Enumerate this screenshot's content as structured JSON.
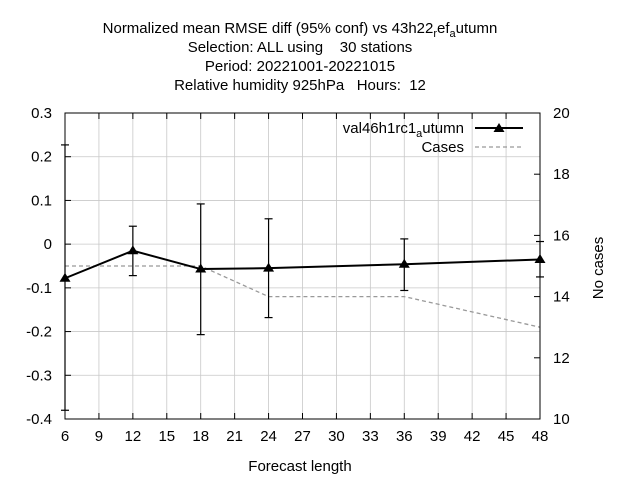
{
  "chart_data": {
    "type": "line",
    "title_lines": [
      "Normalized mean RMSE diff (95% conf) vs 43h22",
      "Selection: ALL using    30 stations",
      "Period: 20221001-20221015",
      "Relative humidity 925hPa   Hours:  12"
    ],
    "title_ref_suffix": {
      "a": "r",
      "b": "ef",
      "c": "a",
      "d": "utumn"
    },
    "xlabel": "Forecast length",
    "ylabel": "",
    "y2label": "No cases",
    "xlim": [
      6,
      48
    ],
    "ylim": [
      -0.4,
      0.3
    ],
    "y2lim": [
      10,
      20
    ],
    "x_ticks": [
      "6",
      "9",
      "12",
      "15",
      "18",
      "21",
      "24",
      "27",
      "30",
      "33",
      "36",
      "39",
      "42",
      "45",
      "48"
    ],
    "y_ticks": [
      "0.3",
      "0.2",
      "0.1",
      "0",
      "-0.1",
      "-0.2",
      "-0.3",
      "-0.4"
    ],
    "y2_ticks": [
      "20",
      "18",
      "16",
      "14",
      "12",
      "10"
    ],
    "grid": true,
    "legend_position": "top-right",
    "series": [
      {
        "name": "val46h1rc1",
        "name_sub": "a",
        "name_suffix": "utumn",
        "axis": "y",
        "color": "#000000",
        "marker": "triangle",
        "x": [
          6,
          12,
          18,
          24,
          36,
          48
        ],
        "y": [
          -0.078,
          -0.015,
          -0.057,
          -0.055,
          -0.046,
          -0.035
        ],
        "err_low": [
          -0.38,
          -0.072,
          -0.207,
          -0.168,
          -0.106,
          -0.075
        ],
        "err_high": [
          0.227,
          0.041,
          0.092,
          0.058,
          0.012,
          0.006
        ]
      },
      {
        "name": "Cases",
        "axis": "y2",
        "color": "#999999",
        "style": "dashed",
        "x": [
          6,
          12,
          18,
          24,
          36,
          48
        ],
        "y": [
          15,
          15,
          15,
          14,
          14,
          13
        ]
      }
    ]
  }
}
